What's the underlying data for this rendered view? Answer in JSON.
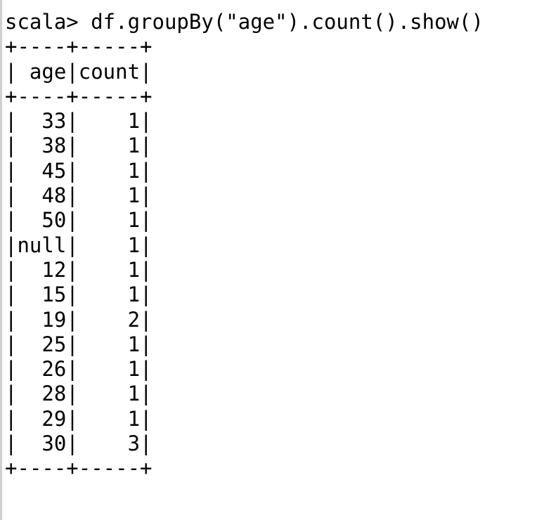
{
  "terminal": {
    "prompt": "scala> ",
    "command": "df.groupBy(\"age\").count().show()",
    "border_line": "+----+-----+",
    "header_row": "| age|count|",
    "rows": [
      "|  33|    1|",
      "|  38|    1|",
      "|  45|    1|",
      "|  48|    1|",
      "|  50|    1|",
      "|null|    1|",
      "|  12|    1|",
      "|  15|    1|",
      "|  19|    2|",
      "|  25|    1|",
      "|  26|    1|",
      "|  28|    1|",
      "|  29|    1|",
      "|  30|    3|"
    ]
  }
}
